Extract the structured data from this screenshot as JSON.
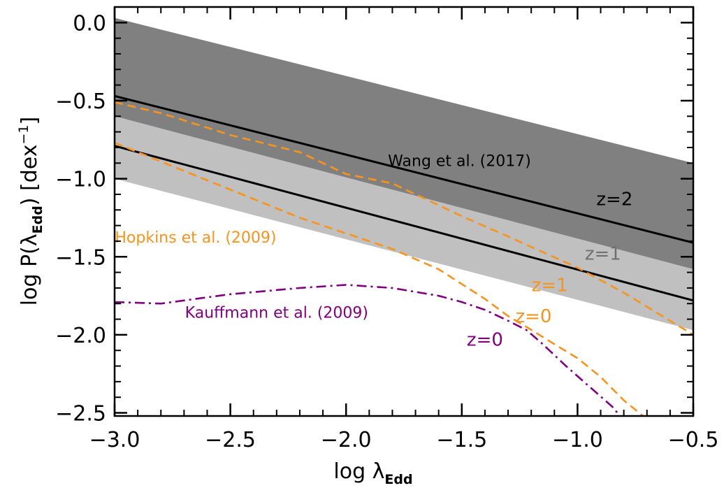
{
  "chart_data": {
    "type": "line",
    "xlabel_main": "log λ",
    "xlabel_sub": "Edd",
    "ylabel_main": "log P(λ",
    "ylabel_sub": "Edd",
    "ylabel_close": ") [dex",
    "ylabel_sup": "−1",
    "ylabel_end": "]",
    "xlim": [
      -3.0,
      -0.5
    ],
    "ylim": [
      -2.52,
      0.1
    ],
    "grid": false,
    "x_ticks": [
      -3.0,
      -2.5,
      -2.0,
      -1.5,
      -1.0,
      -0.5
    ],
    "x_tick_labels": [
      "−3.0",
      "−2.5",
      "−2.0",
      "−1.5",
      "−1.0",
      "−0.5"
    ],
    "y_ticks": [
      0.0,
      -0.5,
      -1.0,
      -1.5,
      -2.0,
      -2.5
    ],
    "y_tick_labels": [
      "0.0",
      "−0.5",
      "−1.0",
      "−1.5",
      "−2.0",
      "−2.5"
    ],
    "bands": [
      {
        "x": [
          -3.0,
          -0.5
        ],
        "lower": [
          -0.6,
          -1.58
        ],
        "upper": [
          0.03,
          -0.9
        ],
        "color": "#808080"
      },
      {
        "x": [
          -3.0,
          -0.5
        ],
        "lower": [
          -1.0,
          -1.97
        ],
        "upper": [
          -0.6,
          -1.58
        ],
        "color": "#c0c0c0"
      }
    ],
    "series": [
      {
        "x": [
          -3.0,
          -0.5
        ],
        "y": [
          -0.47,
          -1.41
        ],
        "color": "#000000",
        "style": "solid"
      },
      {
        "x": [
          -3.0,
          -0.5
        ],
        "y": [
          -0.79,
          -1.78
        ],
        "color": "#000000",
        "style": "solid"
      },
      {
        "x": [
          -3.0,
          -2.8,
          -2.5,
          -2.2,
          -2.0,
          -1.8,
          -1.5,
          -1.3,
          -1.0,
          -0.8,
          -0.5
        ],
        "y": [
          -0.51,
          -0.58,
          -0.72,
          -0.83,
          -0.97,
          -1.03,
          -1.24,
          -1.37,
          -1.57,
          -1.73,
          -2.0
        ],
        "color": "#f7931e",
        "style": "dashed"
      },
      {
        "x": [
          -3.0,
          -2.8,
          -2.5,
          -2.2,
          -2.0,
          -1.8,
          -1.6,
          -1.4,
          -1.3,
          -1.22,
          -1.1,
          -1.0,
          -0.9,
          -0.8,
          -0.7,
          -0.65
        ],
        "y": [
          -0.77,
          -0.89,
          -1.07,
          -1.25,
          -1.35,
          -1.45,
          -1.58,
          -1.77,
          -1.88,
          -1.95,
          -2.06,
          -2.15,
          -2.27,
          -2.42,
          -2.54,
          -2.6
        ],
        "color": "#f7931e",
        "style": "dashed"
      },
      {
        "x": [
          -3.0,
          -2.8,
          -2.5,
          -2.2,
          -2.0,
          -1.8,
          -1.6,
          -1.5,
          -1.4,
          -1.3,
          -1.22,
          -1.15,
          -1.05,
          -0.95,
          -0.85,
          -0.8
        ],
        "y": [
          -1.79,
          -1.8,
          -1.74,
          -1.7,
          -1.68,
          -1.7,
          -1.75,
          -1.79,
          -1.84,
          -1.91,
          -1.97,
          -2.06,
          -2.2,
          -2.33,
          -2.46,
          -2.55
        ],
        "color": "#800080",
        "style": "dashdot"
      }
    ],
    "annotations": [
      {
        "text": "Wang et al. (2017)",
        "x": -1.51,
        "y": -0.92,
        "color": "#000000",
        "size": 22
      },
      {
        "text": "z=2",
        "x": -0.84,
        "y": -1.17,
        "color": "#000000",
        "size": 26
      },
      {
        "text": "z=1",
        "x": -0.89,
        "y": -1.52,
        "color": "#707070",
        "size": 26
      },
      {
        "text": "Hopkins et al. (2009)",
        "x": -2.65,
        "y": -1.41,
        "color": "#f7931e",
        "size": 22
      },
      {
        "text": "z=1",
        "x": -1.12,
        "y": -1.72,
        "color": "#f7931e",
        "size": 26
      },
      {
        "text": "z=0",
        "x": -1.19,
        "y": -1.92,
        "color": "#f7931e",
        "size": 26
      },
      {
        "text": "Kauffmann et al. (2009)",
        "x": -2.3,
        "y": -1.89,
        "color": "#800080",
        "size": 22
      },
      {
        "text": "z=0",
        "x": -1.4,
        "y": -2.07,
        "color": "#800080",
        "size": 26
      }
    ]
  }
}
